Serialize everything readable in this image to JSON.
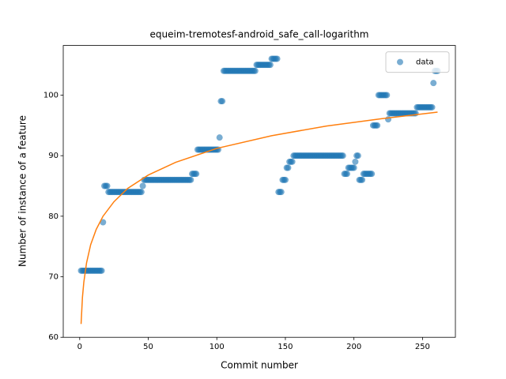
{
  "chart_data": {
    "type": "scatter",
    "title": "equeim-tremotesf-android_safe_call-logarithm",
    "xlabel": "Commit number",
    "ylabel": "Number of instance of a feature",
    "xlim": [
      -12,
      274
    ],
    "ylim": [
      60,
      108.2
    ],
    "xticks": [
      0,
      50,
      100,
      150,
      200,
      250
    ],
    "yticks": [
      60,
      70,
      80,
      90,
      100
    ],
    "legend": "upper right",
    "series": [
      {
        "name": "data",
        "type": "scatter",
        "color": "#1f77b4",
        "x": [
          1,
          2,
          3,
          4,
          5,
          6,
          7,
          8,
          9,
          10,
          11,
          12,
          13,
          14,
          15,
          16,
          17,
          18,
          19,
          20,
          21,
          22,
          23,
          24,
          25,
          26,
          27,
          28,
          29,
          30,
          31,
          32,
          33,
          34,
          35,
          36,
          37,
          38,
          39,
          40,
          41,
          42,
          43,
          44,
          45,
          46,
          47,
          48,
          49,
          50,
          51,
          52,
          53,
          54,
          55,
          56,
          57,
          58,
          59,
          60,
          61,
          62,
          63,
          64,
          65,
          66,
          67,
          68,
          69,
          70,
          71,
          72,
          73,
          74,
          75,
          76,
          77,
          78,
          79,
          80,
          81,
          82,
          83,
          84,
          85,
          86,
          87,
          88,
          89,
          90,
          91,
          92,
          93,
          94,
          95,
          96,
          97,
          98,
          99,
          100,
          101,
          102,
          103,
          104,
          105,
          106,
          107,
          108,
          109,
          110,
          111,
          112,
          113,
          114,
          115,
          116,
          117,
          118,
          119,
          120,
          121,
          122,
          123,
          124,
          125,
          126,
          127,
          128,
          129,
          130,
          131,
          132,
          133,
          134,
          135,
          136,
          137,
          138,
          139,
          140,
          141,
          142,
          143,
          144,
          145,
          146,
          147,
          148,
          149,
          150,
          151,
          152,
          153,
          154,
          155,
          156,
          157,
          158,
          159,
          160,
          161,
          162,
          163,
          164,
          165,
          166,
          167,
          168,
          169,
          170,
          171,
          172,
          173,
          174,
          175,
          176,
          177,
          178,
          179,
          180,
          181,
          182,
          183,
          184,
          185,
          186,
          187,
          188,
          189,
          190,
          191,
          192,
          193,
          194,
          195,
          196,
          197,
          198,
          199,
          200,
          201,
          202,
          203,
          204,
          205,
          206,
          207,
          208,
          209,
          210,
          211,
          212,
          213,
          214,
          215,
          216,
          217,
          218,
          219,
          220,
          221,
          222,
          223,
          224,
          225,
          226,
          227,
          228,
          229,
          230,
          231,
          232,
          233,
          234,
          235,
          236,
          237,
          238,
          239,
          240,
          241,
          242,
          243,
          244,
          245,
          246,
          247,
          248,
          249,
          250,
          251,
          252,
          253,
          254,
          255,
          256,
          257,
          258,
          259,
          260,
          261
        ],
        "values": [
          71,
          71,
          71,
          71,
          71,
          71,
          71,
          71,
          71,
          71,
          71,
          71,
          71,
          71,
          71,
          71,
          79,
          85,
          85,
          85,
          84,
          84,
          84,
          84,
          84,
          84,
          84,
          84,
          84,
          84,
          84,
          84,
          84,
          84,
          84,
          84,
          84,
          84,
          84,
          84,
          84,
          84,
          84,
          84,
          84,
          85,
          86,
          86,
          86,
          86,
          86,
          86,
          86,
          86,
          86,
          86,
          86,
          86,
          86,
          86,
          86,
          86,
          86,
          86,
          86,
          86,
          86,
          86,
          86,
          86,
          86,
          86,
          86,
          86,
          86,
          86,
          86,
          86,
          86,
          86,
          86,
          87,
          87,
          87,
          87,
          91,
          91,
          91,
          91,
          91,
          91,
          91,
          91,
          91,
          91,
          91,
          91,
          91,
          91,
          91,
          91,
          93,
          99,
          99,
          104,
          104,
          104,
          104,
          104,
          104,
          104,
          104,
          104,
          104,
          104,
          104,
          104,
          104,
          104,
          104,
          104,
          104,
          104,
          104,
          104,
          104,
          104,
          104,
          105,
          105,
          105,
          105,
          105,
          105,
          105,
          105,
          105,
          105,
          105,
          106,
          106,
          106,
          106,
          106,
          84,
          84,
          84,
          86,
          86,
          86,
          88,
          88,
          89,
          89,
          89,
          90,
          90,
          90,
          90,
          90,
          90,
          90,
          90,
          90,
          90,
          90,
          90,
          90,
          90,
          90,
          90,
          90,
          90,
          90,
          90,
          90,
          90,
          90,
          90,
          90,
          90,
          90,
          90,
          90,
          90,
          90,
          90,
          90,
          90,
          90,
          90,
          90,
          87,
          87,
          87,
          88,
          88,
          88,
          88,
          88,
          89,
          90,
          90,
          86,
          86,
          86,
          87,
          87,
          87,
          87,
          87,
          87,
          87,
          95,
          95,
          95,
          95,
          100,
          100,
          100,
          100,
          100,
          100,
          100,
          96,
          97,
          97,
          97,
          97,
          97,
          97,
          97,
          97,
          97,
          97,
          97,
          97,
          97,
          97,
          97,
          97,
          97,
          97,
          97,
          97,
          98,
          98,
          98,
          98,
          98,
          98,
          98,
          98,
          98,
          98,
          98,
          98,
          102,
          104,
          104,
          104
        ]
      },
      {
        "type": "line",
        "color": "#ff7f0e",
        "x": [
          1,
          2,
          3,
          5,
          8,
          12,
          17,
          25,
          35,
          50,
          70,
          100,
          140,
          180,
          220,
          261
        ],
        "values": [
          62.2,
          66.6,
          69.1,
          72.3,
          75.3,
          77.8,
          80.0,
          82.4,
          84.6,
          86.8,
          88.9,
          91.2,
          93.3,
          94.9,
          96.1,
          97.2
        ]
      }
    ]
  }
}
